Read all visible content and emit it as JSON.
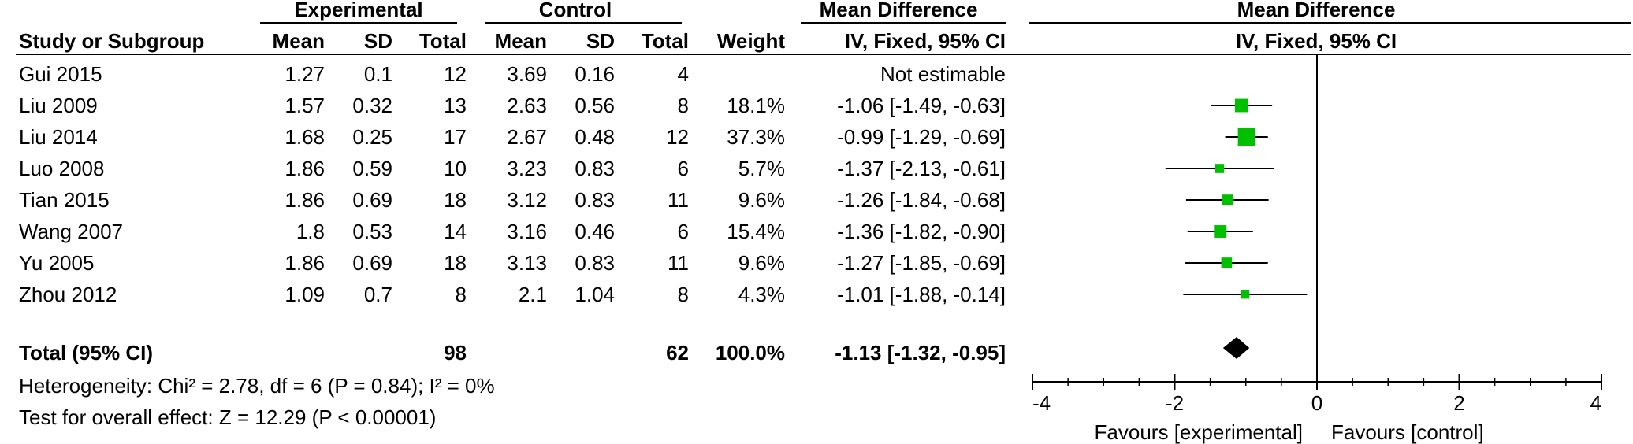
{
  "table": {
    "group_headers": {
      "experimental": "Experimental",
      "control": "Control",
      "mean_diff": "Mean Difference",
      "plot_title": "Mean Difference"
    },
    "columns": {
      "study": "Study or Subgroup",
      "e_mean": "Mean",
      "e_sd": "SD",
      "e_total": "Total",
      "c_mean": "Mean",
      "c_sd": "SD",
      "c_total": "Total",
      "weight": "Weight",
      "ci": "IV, Fixed, 95% CI",
      "plot_ci": "IV, Fixed, 95% CI"
    },
    "rows": [
      {
        "study": "Gui 2015",
        "e_mean": "1.27",
        "e_sd": "0.1",
        "e_total": "12",
        "c_mean": "3.69",
        "c_sd": "0.16",
        "c_total": "4",
        "weight": "",
        "ci": "Not estimable"
      },
      {
        "study": "Liu 2009",
        "e_mean": "1.57",
        "e_sd": "0.32",
        "e_total": "13",
        "c_mean": "2.63",
        "c_sd": "0.56",
        "c_total": "8",
        "weight": "18.1%",
        "ci": "-1.06 [-1.49, -0.63]"
      },
      {
        "study": "Liu 2014",
        "e_mean": "1.68",
        "e_sd": "0.25",
        "e_total": "17",
        "c_mean": "2.67",
        "c_sd": "0.48",
        "c_total": "12",
        "weight": "37.3%",
        "ci": "-0.99 [-1.29, -0.69]"
      },
      {
        "study": "Luo 2008",
        "e_mean": "1.86",
        "e_sd": "0.59",
        "e_total": "10",
        "c_mean": "3.23",
        "c_sd": "0.83",
        "c_total": "6",
        "weight": "5.7%",
        "ci": "-1.37 [-2.13, -0.61]"
      },
      {
        "study": "Tian 2015",
        "e_mean": "1.86",
        "e_sd": "0.69",
        "e_total": "18",
        "c_mean": "3.12",
        "c_sd": "0.83",
        "c_total": "11",
        "weight": "9.6%",
        "ci": "-1.26 [-1.84, -0.68]"
      },
      {
        "study": "Wang 2007",
        "e_mean": "1.8",
        "e_sd": "0.53",
        "e_total": "14",
        "c_mean": "3.16",
        "c_sd": "0.46",
        "c_total": "6",
        "weight": "15.4%",
        "ci": "-1.36 [-1.82, -0.90]"
      },
      {
        "study": "Yu 2005",
        "e_mean": "1.86",
        "e_sd": "0.69",
        "e_total": "18",
        "c_mean": "3.13",
        "c_sd": "0.83",
        "c_total": "11",
        "weight": "9.6%",
        "ci": "-1.27 [-1.85, -0.69]"
      },
      {
        "study": "Zhou 2012",
        "e_mean": "1.09",
        "e_sd": "0.7",
        "e_total": "8",
        "c_mean": "2.1",
        "c_sd": "1.04",
        "c_total": "8",
        "weight": "4.3%",
        "ci": "-1.01 [-1.88, -0.14]"
      }
    ],
    "total": {
      "label": "Total (95% CI)",
      "e_total": "98",
      "c_total": "62",
      "weight": "100.0%",
      "ci": "-1.13 [-1.32, -0.95]"
    },
    "heterogeneity": "Heterogeneity: Chi² = 2.78, df = 6 (P = 0.84); I² = 0%",
    "overall_effect": "Test for overall effect: Z = 12.29 (P < 0.00001)"
  },
  "chart_data": {
    "type": "forest",
    "x_axis": {
      "min": -4,
      "max": 4,
      "ticks": [
        -4,
        -2,
        0,
        2,
        4
      ],
      "tick_labels": [
        "-4",
        "-2",
        "0",
        "2",
        "4"
      ]
    },
    "favours_left": "Favours [experimental]",
    "favours_right": "Favours [control]",
    "studies": [
      {
        "name": "Gui 2015",
        "estimate": null,
        "lower": null,
        "upper": null,
        "weight": 0
      },
      {
        "name": "Liu 2009",
        "estimate": -1.06,
        "lower": -1.49,
        "upper": -0.63,
        "weight": 18.1
      },
      {
        "name": "Liu 2014",
        "estimate": -0.99,
        "lower": -1.29,
        "upper": -0.69,
        "weight": 37.3
      },
      {
        "name": "Luo 2008",
        "estimate": -1.37,
        "lower": -2.13,
        "upper": -0.61,
        "weight": 5.7
      },
      {
        "name": "Tian 2015",
        "estimate": -1.26,
        "lower": -1.84,
        "upper": -0.68,
        "weight": 9.6
      },
      {
        "name": "Wang 2007",
        "estimate": -1.36,
        "lower": -1.82,
        "upper": -0.9,
        "weight": 15.4
      },
      {
        "name": "Yu 2005",
        "estimate": -1.27,
        "lower": -1.85,
        "upper": -0.69,
        "weight": 9.6
      },
      {
        "name": "Zhou 2012",
        "estimate": -1.01,
        "lower": -1.88,
        "upper": -0.14,
        "weight": 4.3
      }
    ],
    "pooled": {
      "estimate": -1.13,
      "lower": -1.32,
      "upper": -0.95
    },
    "colors": {
      "marker": "#00c000",
      "line": "#000000",
      "diamond": "#000000"
    }
  }
}
